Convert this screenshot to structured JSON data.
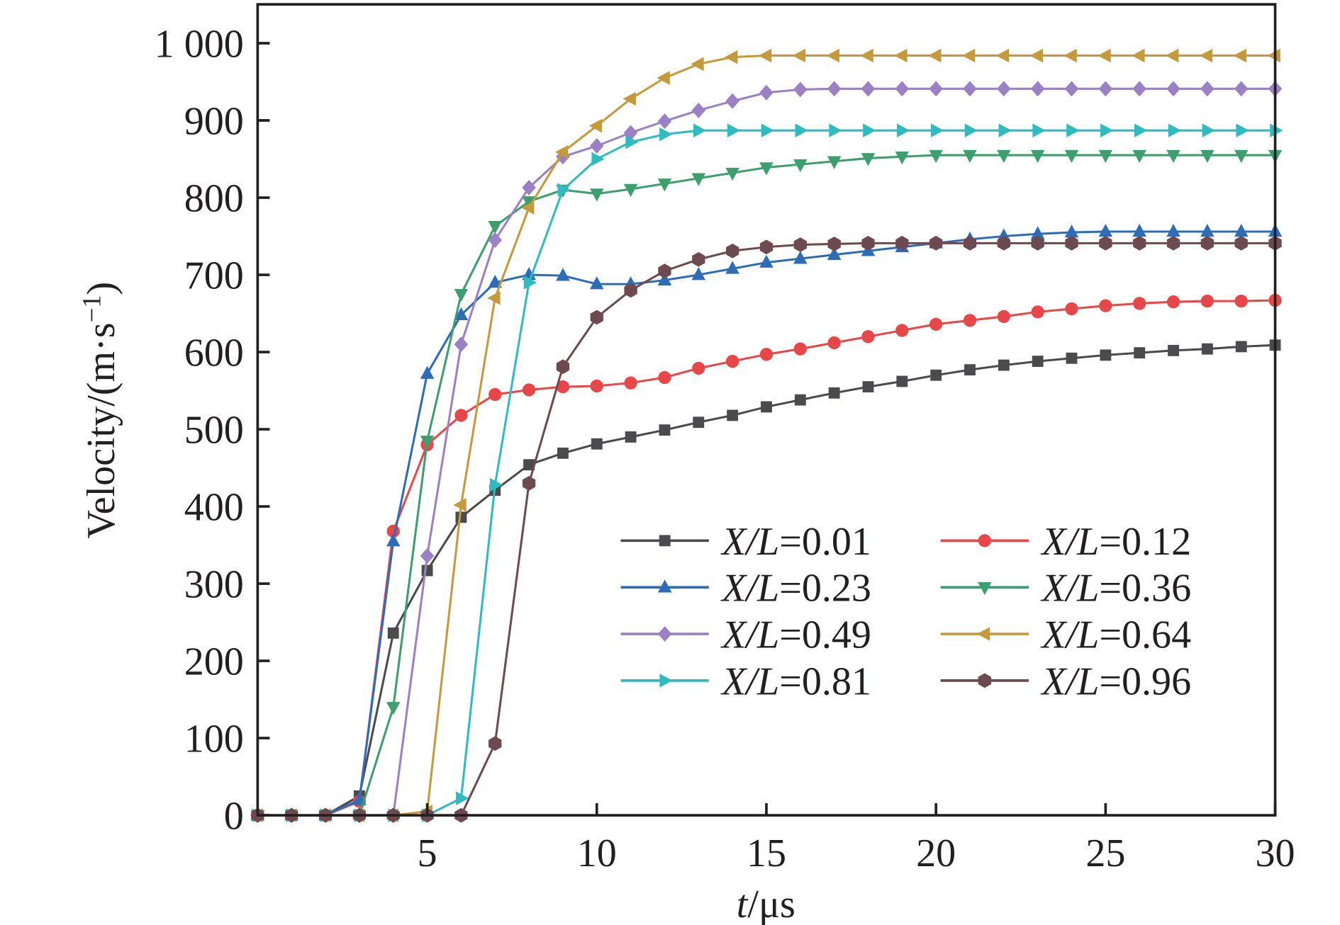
{
  "chart_data": {
    "type": "line",
    "title": "",
    "xlabel_italic": "t",
    "xlabel_rest": "/μs",
    "ylabel": "Velocity/(m·s",
    "ylabel_sup": "−1",
    "ylabel_close": ")",
    "xlim": [
      0,
      30
    ],
    "ylim": [
      0,
      1050
    ],
    "xticks": [
      5,
      10,
      15,
      20,
      25,
      30
    ],
    "xtick_labels": [
      "5",
      "10",
      "15",
      "20",
      "25",
      "30"
    ],
    "yticks": [
      0,
      100,
      200,
      300,
      400,
      500,
      600,
      700,
      800,
      900,
      1000
    ],
    "ytick_labels": [
      "0",
      "100",
      "200",
      "300",
      "400",
      "500",
      "600",
      "700",
      "800",
      "900",
      "1 000"
    ],
    "grid": false,
    "legend_position": "lower-right, two columns",
    "x": [
      0,
      1,
      2,
      3,
      4,
      5,
      6,
      7,
      8,
      9,
      10,
      11,
      12,
      13,
      14,
      15,
      16,
      17,
      18,
      19,
      20,
      21,
      22,
      23,
      24,
      25,
      26,
      27,
      28,
      29,
      30
    ],
    "series": [
      {
        "name_italic": "X/L",
        "name_value": "=0.01",
        "color": "#4b4b4d",
        "marker": "square",
        "values": [
          0,
          0,
          0,
          25,
          236,
          317,
          386,
          421,
          454,
          469,
          481,
          490,
          499,
          509,
          518,
          529,
          538,
          547,
          555,
          562,
          570,
          577,
          583,
          588,
          592,
          596,
          599,
          602,
          604,
          607,
          609
        ]
      },
      {
        "name_italic": "X/L",
        "name_value": "=0.12",
        "color": "#e8474a",
        "marker": "circle",
        "values": [
          0,
          0,
          0,
          18,
          368,
          480,
          518,
          545,
          551,
          555,
          556,
          560,
          567,
          579,
          588,
          597,
          604,
          612,
          620,
          628,
          636,
          641,
          646,
          652,
          656,
          660,
          663,
          665,
          666,
          666,
          667
        ]
      },
      {
        "name_italic": "X/L",
        "name_value": "=0.23",
        "color": "#2e6db5",
        "marker": "triangle-up",
        "values": [
          0,
          0,
          0,
          20,
          355,
          572,
          648,
          690,
          700,
          699,
          688,
          688,
          693,
          700,
          708,
          716,
          721,
          726,
          731,
          736,
          741,
          746,
          750,
          753,
          755,
          756,
          756,
          756,
          756,
          756,
          756
        ]
      },
      {
        "name_italic": "X/L",
        "name_value": "=0.36",
        "color": "#3d9e6e",
        "marker": "triangle-down",
        "values": [
          0,
          0,
          0,
          0,
          140,
          485,
          675,
          763,
          795,
          810,
          805,
          811,
          818,
          825,
          832,
          839,
          843,
          847,
          851,
          853,
          855,
          855,
          855,
          855,
          855,
          855,
          855,
          855,
          855,
          855,
          855
        ]
      },
      {
        "name_italic": "X/L",
        "name_value": "=0.49",
        "color": "#9b80c3",
        "marker": "diamond",
        "values": [
          0,
          0,
          0,
          0,
          0,
          336,
          610,
          745,
          813,
          853,
          867,
          884,
          899,
          913,
          925,
          936,
          940,
          941,
          941,
          941,
          941,
          941,
          941,
          941,
          941,
          941,
          941,
          941,
          941,
          941,
          941
        ]
      },
      {
        "name_italic": "X/L",
        "name_value": "=0.64",
        "color": "#c49a3c",
        "marker": "triangle-left",
        "values": [
          0,
          0,
          0,
          0,
          0,
          5,
          402,
          670,
          787,
          859,
          893,
          928,
          955,
          973,
          982,
          984,
          984,
          984,
          984,
          984,
          984,
          984,
          984,
          984,
          984,
          984,
          984,
          984,
          984,
          984,
          984
        ]
      },
      {
        "name_italic": "X/L",
        "name_value": "=0.81",
        "color": "#30bcbf",
        "marker": "triangle-right",
        "values": [
          0,
          0,
          0,
          0,
          0,
          0,
          22,
          428,
          690,
          810,
          850,
          872,
          882,
          887,
          887,
          887,
          887,
          887,
          887,
          887,
          887,
          887,
          887,
          887,
          887,
          887,
          887,
          887,
          887,
          887,
          887
        ]
      },
      {
        "name_italic": "X/L",
        "name_value": "=0.96",
        "color": "#6d4a4f",
        "marker": "hexagon",
        "values": [
          0,
          0,
          0,
          0,
          0,
          0,
          0,
          93,
          430,
          581,
          645,
          680,
          705,
          720,
          731,
          736,
          739,
          740,
          741,
          741,
          741,
          741,
          741,
          741,
          741,
          741,
          741,
          741,
          741,
          741,
          741
        ]
      }
    ]
  }
}
